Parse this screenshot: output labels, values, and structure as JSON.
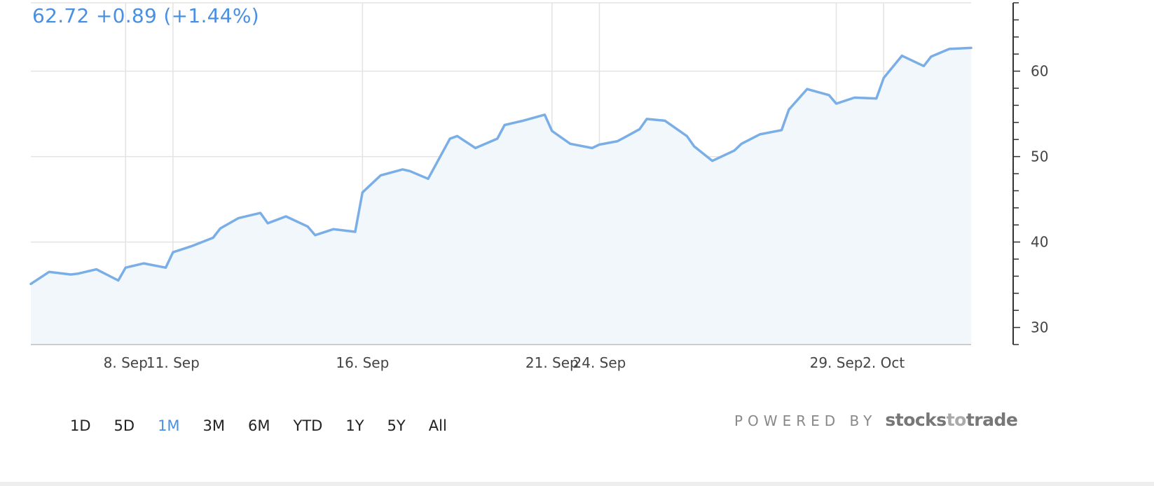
{
  "quote": {
    "text": "62.72 +0.89 (+1.44%)"
  },
  "chart_data": {
    "type": "area",
    "x": [
      "2018-09-06 09:30",
      "2018-09-06 12:00",
      "2018-09-06 15:00",
      "2018-09-07 09:30",
      "2018-09-07 12:00",
      "2018-09-07 15:00",
      "2018-09-10 09:30",
      "2018-09-10 12:00",
      "2018-09-10 15:00",
      "2018-09-11 09:30",
      "2018-09-11 12:00",
      "2018-09-11 15:00",
      "2018-09-12 09:30",
      "2018-09-12 12:00",
      "2018-09-12 15:00",
      "2018-09-13 09:30",
      "2018-09-13 12:00",
      "2018-09-13 15:00",
      "2018-09-14 09:30",
      "2018-09-14 12:00",
      "2018-09-14 15:00",
      "2018-09-17 09:30",
      "2018-09-17 12:00",
      "2018-09-17 15:00",
      "2018-09-18 09:30",
      "2018-09-18 12:00",
      "2018-09-18 15:00",
      "2018-09-19 09:30",
      "2018-09-19 12:00",
      "2018-09-19 15:00",
      "2018-09-20 09:30",
      "2018-09-20 12:00",
      "2018-09-20 15:00",
      "2018-09-21 09:30",
      "2018-09-21 12:00",
      "2018-09-21 15:00",
      "2018-09-24 09:30",
      "2018-09-24 12:00",
      "2018-09-24 15:00",
      "2018-09-25 09:30",
      "2018-09-25 12:00",
      "2018-09-25 15:00",
      "2018-09-26 09:30",
      "2018-09-26 12:00",
      "2018-09-26 15:00",
      "2018-09-27 09:30",
      "2018-09-27 12:00",
      "2018-09-27 15:00",
      "2018-09-28 09:30",
      "2018-09-28 12:00",
      "2018-09-28 15:00",
      "2018-10-01 09:30",
      "2018-10-01 12:00",
      "2018-10-01 15:00",
      "2018-10-02 09:30",
      "2018-10-02 12:00",
      "2018-10-02 15:00",
      "2018-10-03 09:30",
      "2018-10-03 12:00",
      "2018-10-03 15:00"
    ],
    "series": [
      {
        "values": [
          35.1,
          36.5,
          36.2,
          36.3,
          36.8,
          35.5,
          37.0,
          37.5,
          37.0,
          38.8,
          39.5,
          40.5,
          41.6,
          42.8,
          43.4,
          42.2,
          43.0,
          41.8,
          40.8,
          41.5,
          41.2,
          45.8,
          47.8,
          48.5,
          48.3,
          47.4,
          52.1,
          52.4,
          51.0,
          52.1,
          53.7,
          54.2,
          54.9,
          53.0,
          51.5,
          51.0,
          51.4,
          51.8,
          53.2,
          54.4,
          54.2,
          52.4,
          51.2,
          49.5,
          50.7,
          51.5,
          52.6,
          53.1,
          55.5,
          57.9,
          57.2,
          56.2,
          56.9,
          56.8,
          59.2,
          61.8,
          60.6,
          61.7,
          62.6,
          62.72
        ]
      }
    ],
    "xtick_labels": [
      "8. Sep",
      "11. Sep",
      "16. Sep",
      "21. Sep",
      "24. Sep",
      "29. Sep",
      "2. Oct"
    ],
    "ytick_labels": [
      "30",
      "40",
      "50",
      "60"
    ],
    "ylim": [
      28,
      68
    ],
    "grid": true,
    "colors": {
      "line": "#7aaee6",
      "fill": "#f2f7fc",
      "grid": "#e3e3e3",
      "accent": "#4a90e2"
    }
  },
  "range_selector": {
    "options": [
      "1D",
      "5D",
      "1M",
      "3M",
      "6M",
      "YTD",
      "1Y",
      "5Y",
      "All"
    ],
    "selected": "1M"
  },
  "branding": {
    "powered_by": "POWERED BY",
    "brand_part1": "stocks",
    "brand_part2": "to",
    "brand_part3": "trade"
  }
}
